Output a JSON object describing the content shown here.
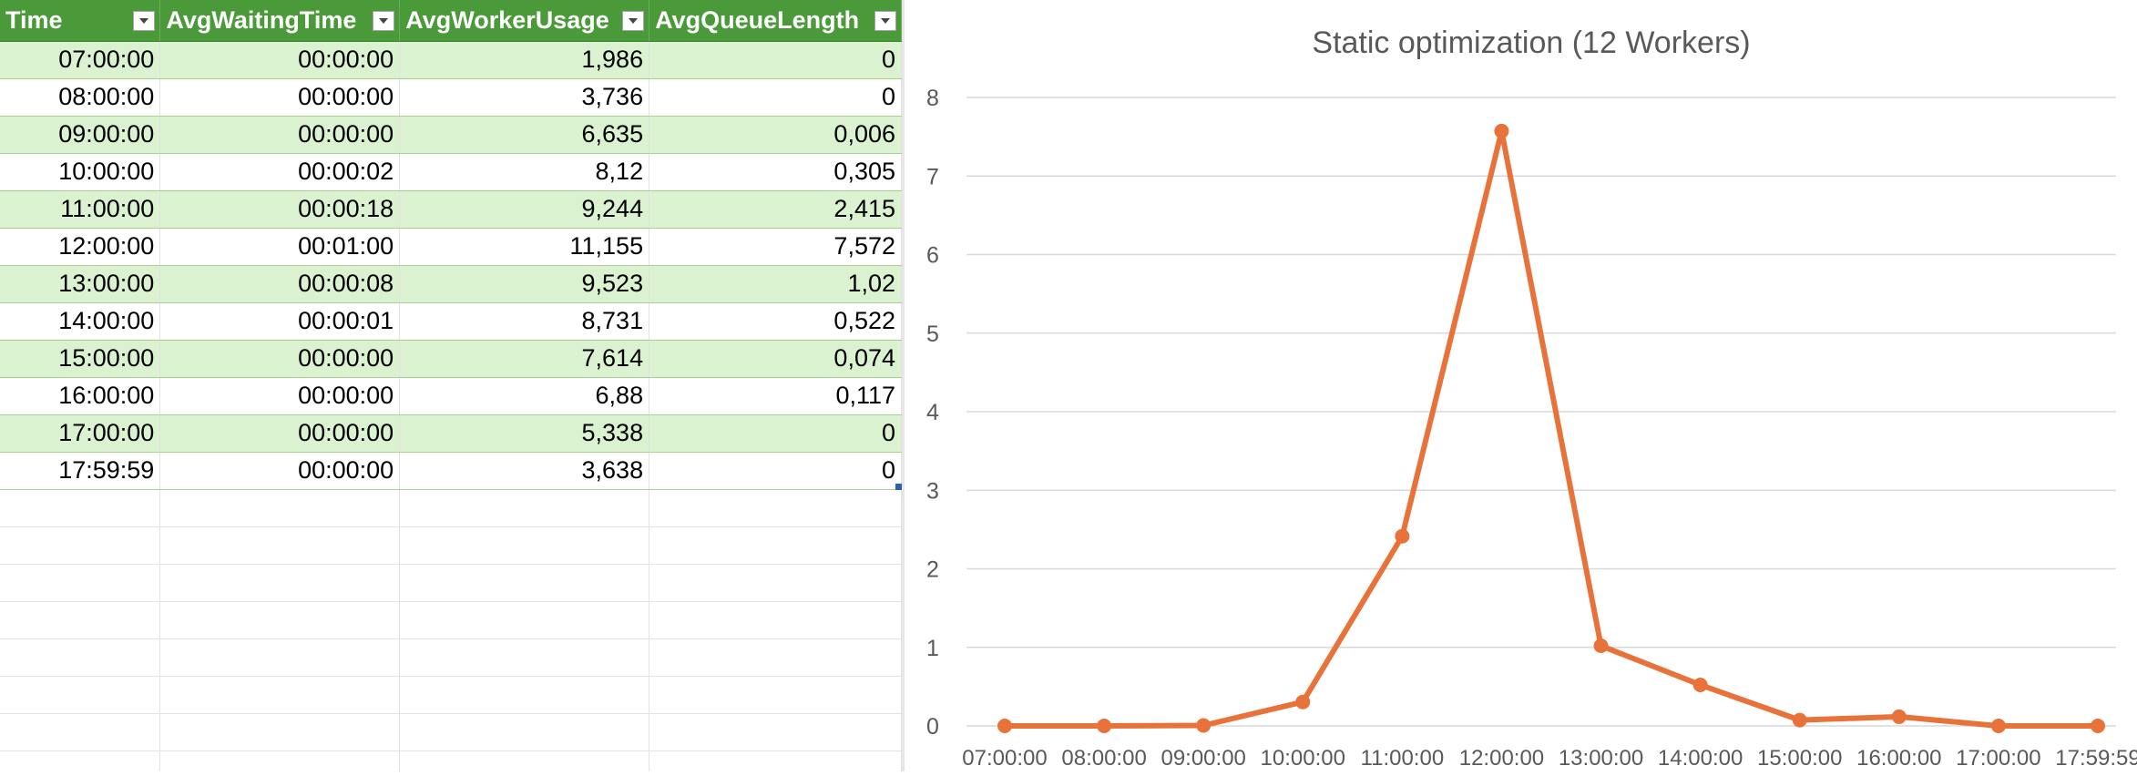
{
  "table": {
    "columns": [
      {
        "label": "Time"
      },
      {
        "label": "AvgWaitingTime"
      },
      {
        "label": "AvgWorkerUsage"
      },
      {
        "label": "AvgQueueLength"
      }
    ],
    "rows": [
      [
        "07:00:00",
        "00:00:00",
        "1,986",
        "0"
      ],
      [
        "08:00:00",
        "00:00:00",
        "3,736",
        "0"
      ],
      [
        "09:00:00",
        "00:00:00",
        "6,635",
        "0,006"
      ],
      [
        "10:00:00",
        "00:00:02",
        "8,12",
        "0,305"
      ],
      [
        "11:00:00",
        "00:00:18",
        "9,244",
        "2,415"
      ],
      [
        "12:00:00",
        "00:01:00",
        "11,155",
        "7,572"
      ],
      [
        "13:00:00",
        "00:00:08",
        "9,523",
        "1,02"
      ],
      [
        "14:00:00",
        "00:00:01",
        "8,731",
        "0,522"
      ],
      [
        "15:00:00",
        "00:00:00",
        "7,614",
        "0,074"
      ],
      [
        "16:00:00",
        "00:00:00",
        "6,88",
        "0,117"
      ],
      [
        "17:00:00",
        "00:00:00",
        "5,338",
        "0"
      ],
      [
        "17:59:59",
        "00:00:00",
        "3,638",
        "0"
      ]
    ]
  },
  "colors": {
    "header_bg": "#4a9a3a",
    "band_bg": "#dbf2d0",
    "series_line": "#e8733a",
    "gridline": "#d9d9d9",
    "axis_text": "#595959"
  },
  "chart_data": {
    "type": "line",
    "title": "Static optimization (12 Workers)",
    "categories": [
      "07:00:00",
      "08:00:00",
      "09:00:00",
      "10:00:00",
      "11:00:00",
      "12:00:00",
      "13:00:00",
      "14:00:00",
      "15:00:00",
      "16:00:00",
      "17:00:00",
      "17:59:59"
    ],
    "series": [
      {
        "values": [
          0,
          0,
          0.006,
          0.305,
          2.415,
          7.572,
          1.02,
          0.522,
          0.074,
          0.117,
          0,
          0
        ],
        "color": "#e8733a",
        "markers": true
      }
    ],
    "ylim": [
      0,
      8
    ],
    "yticks": [
      0,
      1,
      2,
      3,
      4,
      5,
      6,
      7,
      8
    ],
    "grid": "horizontal",
    "legend": "none"
  }
}
